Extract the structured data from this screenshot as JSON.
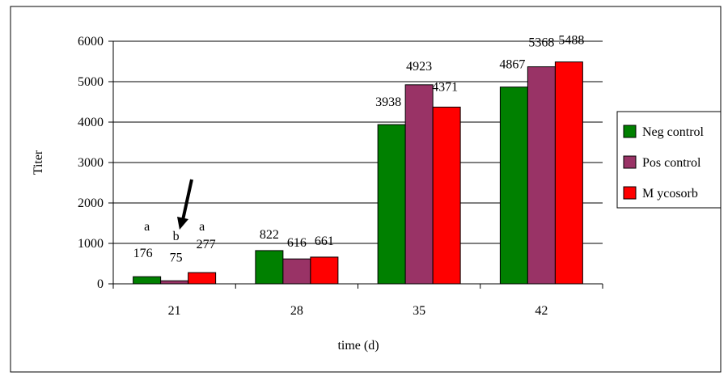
{
  "chart_data": {
    "type": "bar",
    "title": "",
    "xlabel": "time (d)",
    "ylabel": "Titer",
    "ylim": [
      0,
      6000
    ],
    "yticks": [
      0,
      1000,
      2000,
      3000,
      4000,
      5000,
      6000
    ],
    "categories": [
      "21",
      "28",
      "35",
      "42"
    ],
    "series": [
      {
        "name": "Neg control",
        "color": "#008000",
        "values": [
          176,
          822,
          3938,
          4867
        ]
      },
      {
        "name": "Pos control",
        "color": "#993366",
        "values": [
          75,
          616,
          4923,
          5368
        ]
      },
      {
        "name": "Mycosorb",
        "color": "#ff0000",
        "values": [
          277,
          661,
          4371,
          5488
        ]
      }
    ],
    "data_labels": [
      [
        "176",
        "75",
        "277"
      ],
      [
        "822",
        "616",
        "661"
      ],
      [
        "3938",
        "4923",
        "4371"
      ],
      [
        "4867",
        "5368",
        "5488"
      ]
    ],
    "annotations": {
      "letters_day21": [
        "a",
        "b",
        "a"
      ],
      "arrow": "pointing down at the Pos control bar on day 21"
    },
    "grid": "horizontal",
    "legend": {
      "placement": "right",
      "labels": [
        "Neg control",
        "Pos control",
        "M ycosorb"
      ]
    }
  }
}
